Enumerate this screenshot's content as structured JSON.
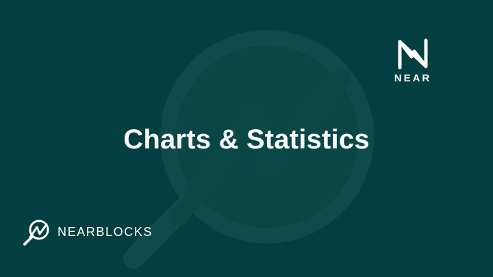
{
  "banner": {
    "title": "Charts & Statistics",
    "background_color": "#033F40",
    "watermark_icon": "magnifier-trend-icon"
  },
  "near_logo": {
    "icon": "near-n-icon",
    "text": "NEAR"
  },
  "nearblocks_logo": {
    "icon": "magnifier-trend-icon",
    "text": "NEARBLOCKS"
  }
}
